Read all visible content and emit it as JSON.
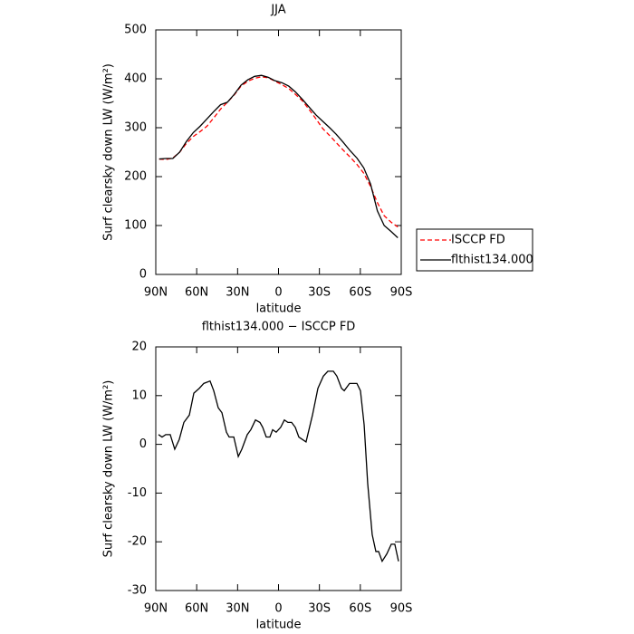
{
  "chart_data": [
    {
      "type": "line",
      "title": "JJA",
      "x_label": "latitude",
      "y_label": "Surf clearsky down LW (W/m²)",
      "x": [
        87.5,
        82.5,
        77.5,
        72.5,
        67.5,
        62.5,
        57.5,
        52.5,
        47.5,
        42.5,
        37.5,
        32.5,
        27.5,
        22.5,
        17.5,
        12.5,
        7.5,
        2.5,
        -2.5,
        -7.5,
        -12.5,
        -17.5,
        -22.5,
        -27.5,
        -32.5,
        -37.5,
        -42.5,
        -47.5,
        -52.5,
        -57.5,
        -62.5,
        -67.5,
        -72.5,
        -77.5,
        -82.5,
        -87.5
      ],
      "series": [
        {
          "name": "ISCCP FD",
          "color": "#ff0000",
          "dash": true,
          "values": [
            236,
            235,
            238,
            250,
            268,
            282,
            292,
            303,
            320,
            338,
            352,
            367,
            385,
            395,
            401,
            404,
            402,
            395,
            388,
            380,
            368,
            355,
            337,
            318,
            298,
            284,
            269,
            254,
            240,
            225,
            207,
            180,
            147,
            120,
            107,
            97
          ]
        },
        {
          "name": "flthist134.000",
          "color": "#000000",
          "dash": false,
          "values": [
            236,
            237,
            237,
            250,
            272,
            290,
            303,
            318,
            333,
            347,
            352,
            368,
            387,
            398,
            405,
            407,
            403,
            396,
            392,
            385,
            373,
            358,
            342,
            326,
            313,
            300,
            286,
            270,
            253,
            238,
            218,
            185,
            130,
            100,
            88,
            75
          ]
        }
      ],
      "xlim": [
        90,
        -90
      ],
      "xticks": [
        {
          "value": 90,
          "label": "90N"
        },
        {
          "value": 60,
          "label": "60N"
        },
        {
          "value": 30,
          "label": "30N"
        },
        0,
        {
          "value": -30,
          "label": "30S"
        },
        {
          "value": -60,
          "label": "60S"
        },
        {
          "value": -90,
          "label": "90S"
        }
      ],
      "ylim": [
        0,
        500
      ],
      "yticks": [
        0,
        100,
        200,
        300,
        400,
        500
      ],
      "legend": "right"
    },
    {
      "type": "line",
      "title": "flthist134.000 − ISCCP FD",
      "x_label": "latitude",
      "y_label": "Surf clearsky down LW (W/m²)",
      "x": [
        88.0,
        85.4,
        82.7,
        79.4,
        76.1,
        72.8,
        69.4,
        65.4,
        62.1,
        58.1,
        54.8,
        50.2,
        47.5,
        44.2,
        41.5,
        38.2,
        36.2,
        32.8,
        29.5,
        26.9,
        22.9,
        20.3,
        16.9,
        13.6,
        11.6,
        9.0,
        6.3,
        4.3,
        1.7,
        -1.6,
        -4.3,
        -6.9,
        -9.6,
        -12.3,
        -14.9,
        -20.2,
        -24.9,
        -28.9,
        -32.9,
        -36.2,
        -40.2,
        -42.8,
        -46.2,
        -48.2,
        -52.1,
        -57.5,
        -60.1,
        -62.8,
        -65.4,
        -68.7,
        -71.4,
        -73.4,
        -76.0,
        -79.4,
        -82.7,
        -85.3,
        -88.0
      ],
      "series": [
        {
          "color": "#000000",
          "dash": false,
          "values": [
            2,
            1.5,
            2,
            2,
            -1,
            1,
            4.5,
            6,
            10.5,
            11.5,
            12.5,
            13,
            11,
            7.5,
            6.5,
            2.5,
            1.5,
            1.5,
            -2.5,
            -1,
            2,
            3,
            5,
            4.5,
            3.5,
            1.5,
            1.5,
            3,
            2.5,
            3.5,
            5,
            4.5,
            4.5,
            3.5,
            1.5,
            0.5,
            6,
            11.5,
            14,
            15,
            15,
            14,
            11.5,
            11,
            12.5,
            12.5,
            11,
            4,
            -8,
            -18.5,
            -22,
            -22,
            -24,
            -22.5,
            -20.5,
            -20.5,
            -24
          ]
        }
      ],
      "xlim": [
        90,
        -90
      ],
      "xticks": [
        {
          "value": 90,
          "label": "90N"
        },
        {
          "value": 60,
          "label": "60N"
        },
        {
          "value": 30,
          "label": "30N"
        },
        0,
        {
          "value": -30,
          "label": "30S"
        },
        {
          "value": -60,
          "label": "60S"
        },
        {
          "value": -90,
          "label": "90S"
        }
      ],
      "ylim": [
        -30,
        20
      ],
      "yticks": [
        -30,
        -20,
        -10,
        0,
        10,
        20
      ]
    }
  ]
}
